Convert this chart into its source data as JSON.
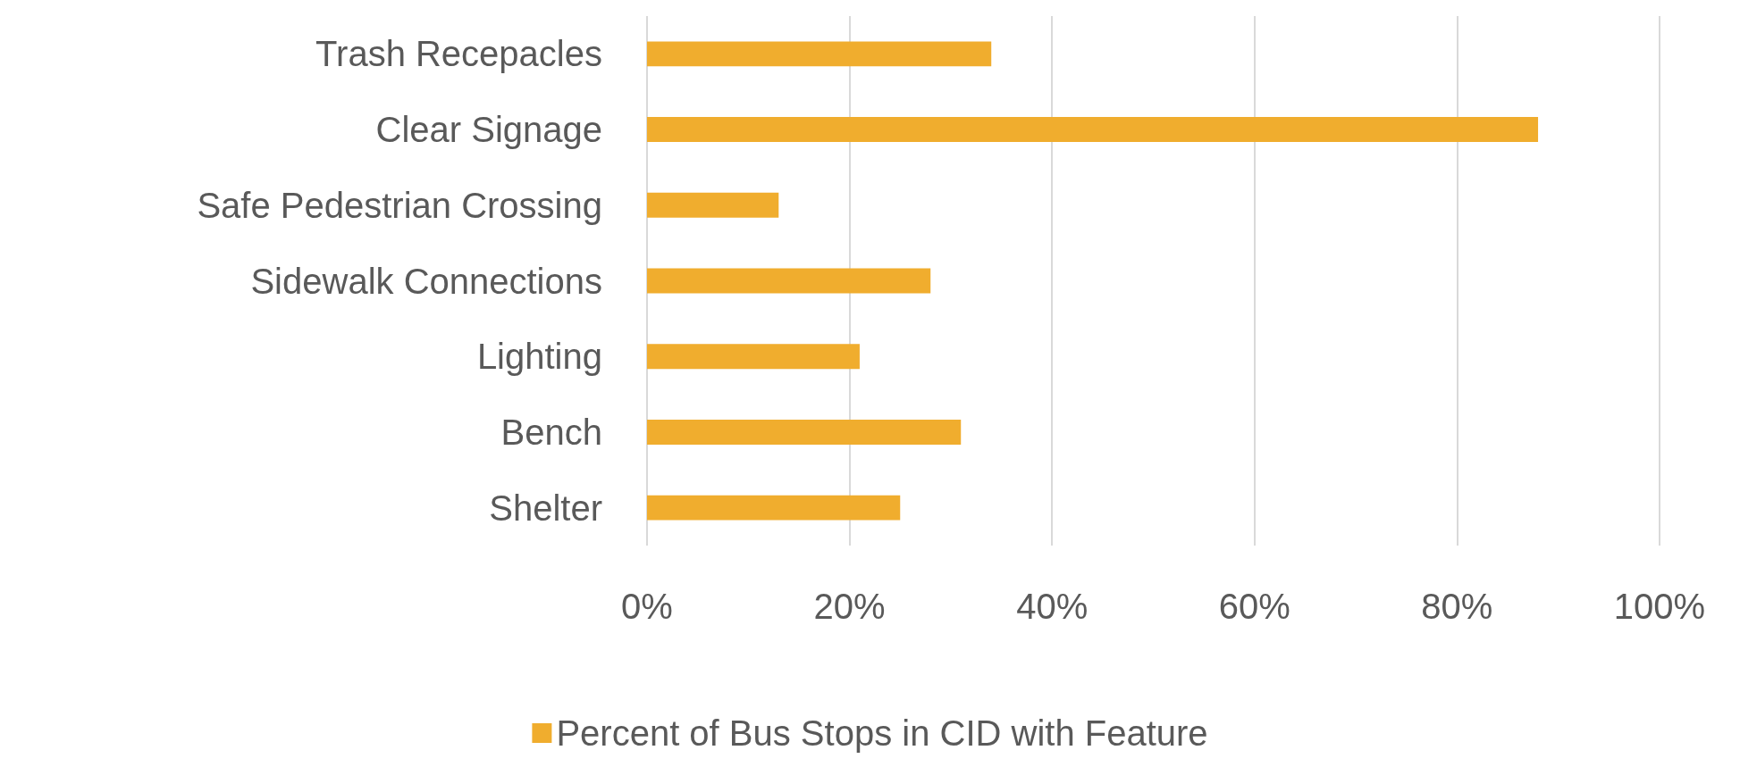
{
  "chart_data": {
    "type": "bar",
    "orientation": "horizontal",
    "categories": [
      "Trash Recepacles",
      "Clear Signage",
      "Safe Pedestrian Crossing",
      "Sidewalk Connections",
      "Lighting",
      "Bench",
      "Shelter"
    ],
    "series": [
      {
        "name": "Percent of Bus Stops in CID with Feature",
        "color": "#f0ad2e",
        "values": [
          34,
          88,
          13,
          28,
          21,
          31,
          25
        ]
      }
    ],
    "xlim": [
      0,
      100
    ],
    "xticks": [
      {
        "value": 0,
        "label": "0%"
      },
      {
        "value": 20,
        "label": "20%"
      },
      {
        "value": 40,
        "label": "40%"
      },
      {
        "value": 60,
        "label": "60%"
      },
      {
        "value": 80,
        "label": "80%"
      },
      {
        "value": 100,
        "label": "100%"
      }
    ],
    "grid": "x",
    "legend": "bottom"
  }
}
